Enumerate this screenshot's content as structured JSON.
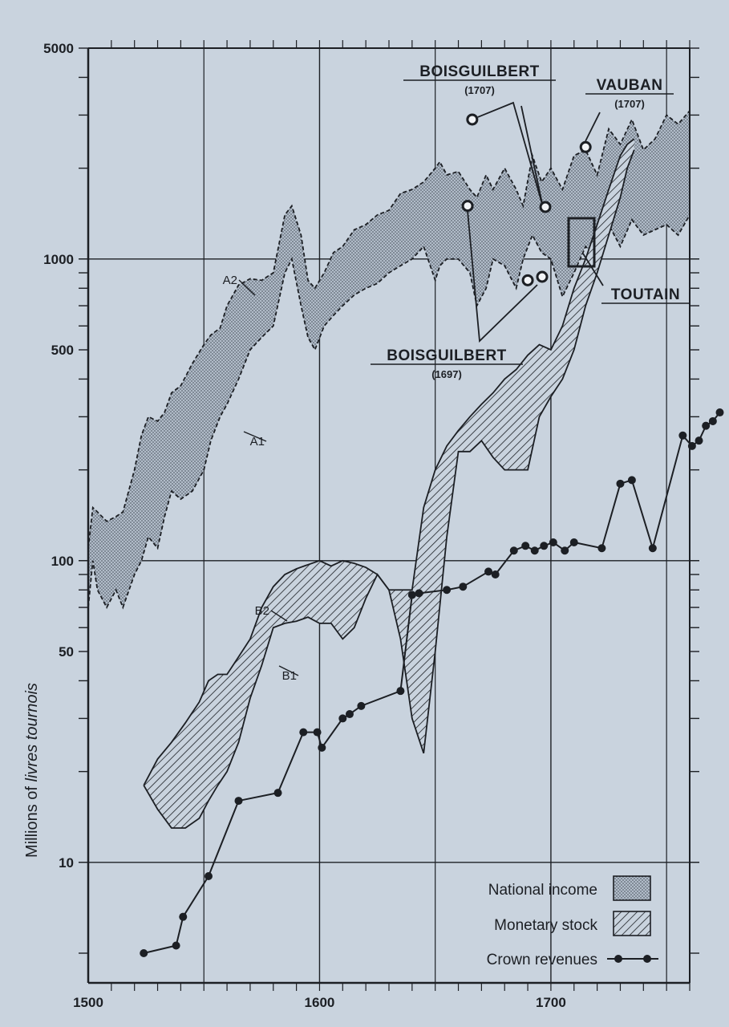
{
  "chart_data": {
    "type": "area",
    "xlabel": "",
    "ylabel": "Millions of livres tournois",
    "ylabel_plain": "Millions of ",
    "ylabel_italic": "livres tournois",
    "xlim": [
      1500,
      1760
    ],
    "ylim": [
      3,
      5000
    ],
    "yscale": "log",
    "grid": true,
    "xticks": [
      {
        "value": 1500,
        "label": "1500"
      },
      {
        "value": 1600,
        "label": "1600"
      },
      {
        "value": 1700,
        "label": "1700"
      }
    ],
    "yticks": [
      {
        "value": 5000,
        "label": "5000"
      },
      {
        "value": 1000,
        "label": "1000"
      },
      {
        "value": 500,
        "label": "500"
      },
      {
        "value": 100,
        "label": "100"
      },
      {
        "value": 50,
        "label": "50"
      },
      {
        "value": 10,
        "label": "10"
      }
    ],
    "colors": {
      "ink": "#1c1f24",
      "background": "#c9d3de",
      "stipple": "#8c96a3"
    },
    "legend": {
      "position": "bottom-right",
      "items": [
        {
          "label": "National income",
          "style": "stipple"
        },
        {
          "label": "Monetary stock",
          "style": "hatch"
        },
        {
          "label": "Crown revenues",
          "style": "line-dots"
        }
      ]
    },
    "national_income": {
      "upper_label": "A2",
      "lower_label": "A1",
      "x": [
        1500,
        1502,
        1504,
        1508,
        1512,
        1515,
        1520,
        1523,
        1526,
        1530,
        1533,
        1536,
        1540,
        1545,
        1550,
        1553,
        1557,
        1560,
        1565,
        1570,
        1575,
        1580,
        1585,
        1588,
        1592,
        1595,
        1598,
        1602,
        1606,
        1610,
        1615,
        1620,
        1625,
        1630,
        1635,
        1640,
        1645,
        1650,
        1652,
        1655,
        1660,
        1665,
        1668,
        1672,
        1675,
        1680,
        1685,
        1688,
        1692,
        1696,
        1700,
        1705,
        1710,
        1715,
        1720,
        1725,
        1730,
        1735,
        1740,
        1745,
        1750,
        1755,
        1760
      ],
      "upper": [
        110,
        150,
        145,
        135,
        140,
        145,
        200,
        260,
        300,
        290,
        310,
        360,
        380,
        450,
        520,
        560,
        590,
        700,
        820,
        860,
        850,
        900,
        1400,
        1500,
        1200,
        850,
        800,
        900,
        1050,
        1100,
        1250,
        1300,
        1400,
        1450,
        1650,
        1700,
        1800,
        2000,
        2100,
        1900,
        1950,
        1700,
        1600,
        1900,
        1700,
        2000,
        1700,
        1500,
        2200,
        1800,
        2000,
        1700,
        2200,
        2300,
        1900,
        2700,
        2400,
        2900,
        2300,
        2500,
        3000,
        2800,
        3100
      ],
      "lower": [
        70,
        100,
        80,
        70,
        80,
        70,
        90,
        100,
        120,
        110,
        140,
        170,
        160,
        170,
        200,
        250,
        300,
        330,
        400,
        500,
        550,
        600,
        900,
        1000,
        700,
        550,
        500,
        600,
        650,
        700,
        760,
        800,
        830,
        900,
        950,
        1000,
        1100,
        850,
        950,
        1000,
        1000,
        900,
        700,
        800,
        1000,
        950,
        800,
        1000,
        1200,
        1050,
        1000,
        750,
        900,
        1100,
        1000,
        1300,
        1100,
        1350,
        1200,
        1250,
        1300,
        1200,
        1400
      ]
    },
    "monetary_stock": {
      "upper_label": "B2",
      "lower_label": "B1",
      "x": [
        1524,
        1530,
        1536,
        1542,
        1548,
        1552,
        1556,
        1560,
        1565,
        1570,
        1575,
        1580,
        1585,
        1590,
        1595,
        1600,
        1605,
        1610,
        1615,
        1620,
        1625,
        1630,
        1635,
        1640,
        1645,
        1650,
        1655,
        1660,
        1665,
        1670,
        1675,
        1680,
        1685,
        1690,
        1695,
        1700,
        1705,
        1710,
        1715,
        1720,
        1725,
        1730,
        1733,
        1736
      ],
      "upper": [
        18,
        22,
        25,
        29,
        34,
        40,
        42,
        42,
        48,
        55,
        70,
        82,
        90,
        94,
        97,
        100,
        96,
        100,
        98,
        95,
        90,
        80,
        80,
        80,
        150,
        200,
        240,
        270,
        300,
        330,
        360,
        400,
        430,
        480,
        520,
        500,
        600,
        800,
        1000,
        1300,
        1700,
        2200,
        2400,
        2500
      ],
      "lower": [
        18,
        15,
        13,
        13,
        14,
        16,
        18,
        20,
        25,
        35,
        45,
        60,
        62,
        63,
        65,
        62,
        62,
        55,
        60,
        75,
        90,
        80,
        55,
        30,
        23,
        50,
        120,
        230,
        230,
        250,
        220,
        200,
        200,
        200,
        300,
        350,
        400,
        500,
        700,
        900,
        1200,
        1600,
        2000,
        2300
      ]
    },
    "crown_revenues": {
      "x": [
        1524,
        1538,
        1541,
        1552,
        1565,
        1582,
        1593,
        1599,
        1601,
        1610,
        1613,
        1618,
        1635,
        1640,
        1643,
        1655,
        1662,
        1673,
        1676,
        1684,
        1689,
        1693,
        1697,
        1701,
        1706,
        1710,
        1722,
        1730,
        1735,
        1744,
        1757,
        1761,
        1764,
        1767,
        1770,
        1773
      ],
      "values": [
        5,
        5.3,
        6.6,
        9,
        16,
        17,
        27,
        27,
        24,
        30,
        31,
        33,
        37,
        77,
        78,
        80,
        82,
        92,
        90,
        108,
        112,
        108,
        112,
        115,
        108,
        115,
        110,
        180,
        185,
        110,
        260,
        240,
        250,
        280,
        290,
        310
      ]
    },
    "annotations": [
      {
        "label": "BOISGUILBERT",
        "year": "(1707)",
        "points": [
          {
            "x": 1666,
            "y": 2900
          }
        ]
      },
      {
        "label": "VAUBAN",
        "year": "(1707)",
        "points": [
          {
            "x": 1715,
            "y": 2350
          }
        ]
      },
      {
        "label": "BOISGUILBERT",
        "year": "(1697)",
        "points": [
          {
            "x": 1664,
            "y": 1500
          },
          {
            "x": 1690,
            "y": 850
          }
        ]
      },
      {
        "label": "TOUTAIN",
        "year": "",
        "points": []
      }
    ]
  }
}
